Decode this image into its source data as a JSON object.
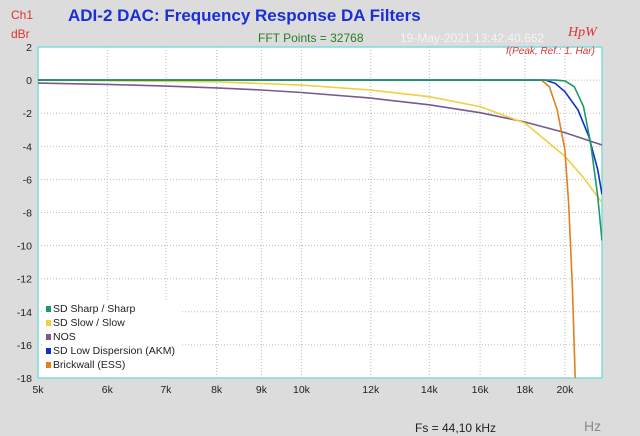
{
  "header": {
    "channel": "Ch1",
    "unit": "dBr",
    "fft": "FFT Points = 32768",
    "date": "19-May-2021 13:42:40.662",
    "logo": "HpW",
    "peak_ref": "f(Peak, Ref.: 1. Har)",
    "fs": "Fs = 44,10 kHz",
    "x_unit": "Hz"
  },
  "chart_data": {
    "type": "line",
    "title": "ADI-2 DAC: Frequency Response DA Filters",
    "xlabel": "Hz",
    "ylabel": "dBr",
    "xscale": "log",
    "xlim": [
      5000,
      22050
    ],
    "ylim": [
      -18,
      2
    ],
    "grid": true,
    "legend": "bottom-left",
    "xticks": [
      5000,
      6000,
      7000,
      8000,
      9000,
      10000,
      12000,
      14000,
      16000,
      18000,
      20000
    ],
    "xtick_labels": [
      "5k",
      "6k",
      "7k",
      "8k",
      "9k",
      "10k",
      "12k",
      "14k",
      "16k",
      "18k",
      "20k"
    ],
    "yticks": [
      2,
      0,
      -2,
      -4,
      -6,
      -8,
      -10,
      -12,
      -14,
      -16,
      -18
    ],
    "series": [
      {
        "name": "SD Sharp / Sharp",
        "color": "#1a9a6a",
        "x": [
          5000,
          19500,
          20000,
          20500,
          21000,
          21400,
          21800,
          22050
        ],
        "y": [
          0,
          0,
          -0.05,
          -0.4,
          -1.6,
          -3.8,
          -7.0,
          -9.7
        ]
      },
      {
        "name": "SD Slow / Slow",
        "color": "#f0d040",
        "x": [
          5000,
          8000,
          10000,
          12000,
          14000,
          16000,
          18000,
          20000,
          21000,
          22050
        ],
        "y": [
          0,
          -0.1,
          -0.3,
          -0.6,
          -1.0,
          -1.6,
          -2.6,
          -4.6,
          -5.9,
          -7.4
        ]
      },
      {
        "name": "NOS",
        "color": "#7a5a8a",
        "x": [
          5000,
          6000,
          7000,
          8000,
          9000,
          10000,
          12000,
          14000,
          16000,
          18000,
          20000,
          22050
        ],
        "y": [
          -0.18,
          -0.26,
          -0.36,
          -0.47,
          -0.6,
          -0.75,
          -1.09,
          -1.49,
          -1.97,
          -2.53,
          -3.17,
          -3.92
        ]
      },
      {
        "name": "SD Low Dispersion (AKM)",
        "color": "#1030d0",
        "x": [
          5000,
          19000,
          19500,
          20000,
          20700,
          21300,
          21800,
          22050
        ],
        "y": [
          0,
          0,
          -0.2,
          -0.7,
          -1.8,
          -3.4,
          -5.4,
          -6.9
        ]
      },
      {
        "name": "Brickwall (ESS)",
        "color": "#e08020",
        "x": [
          5000,
          18800,
          19200,
          19600,
          20000,
          20200,
          20400,
          20550
        ],
        "y": [
          0,
          0,
          -0.4,
          -1.8,
          -4.2,
          -7.5,
          -12.5,
          -18
        ]
      }
    ]
  }
}
